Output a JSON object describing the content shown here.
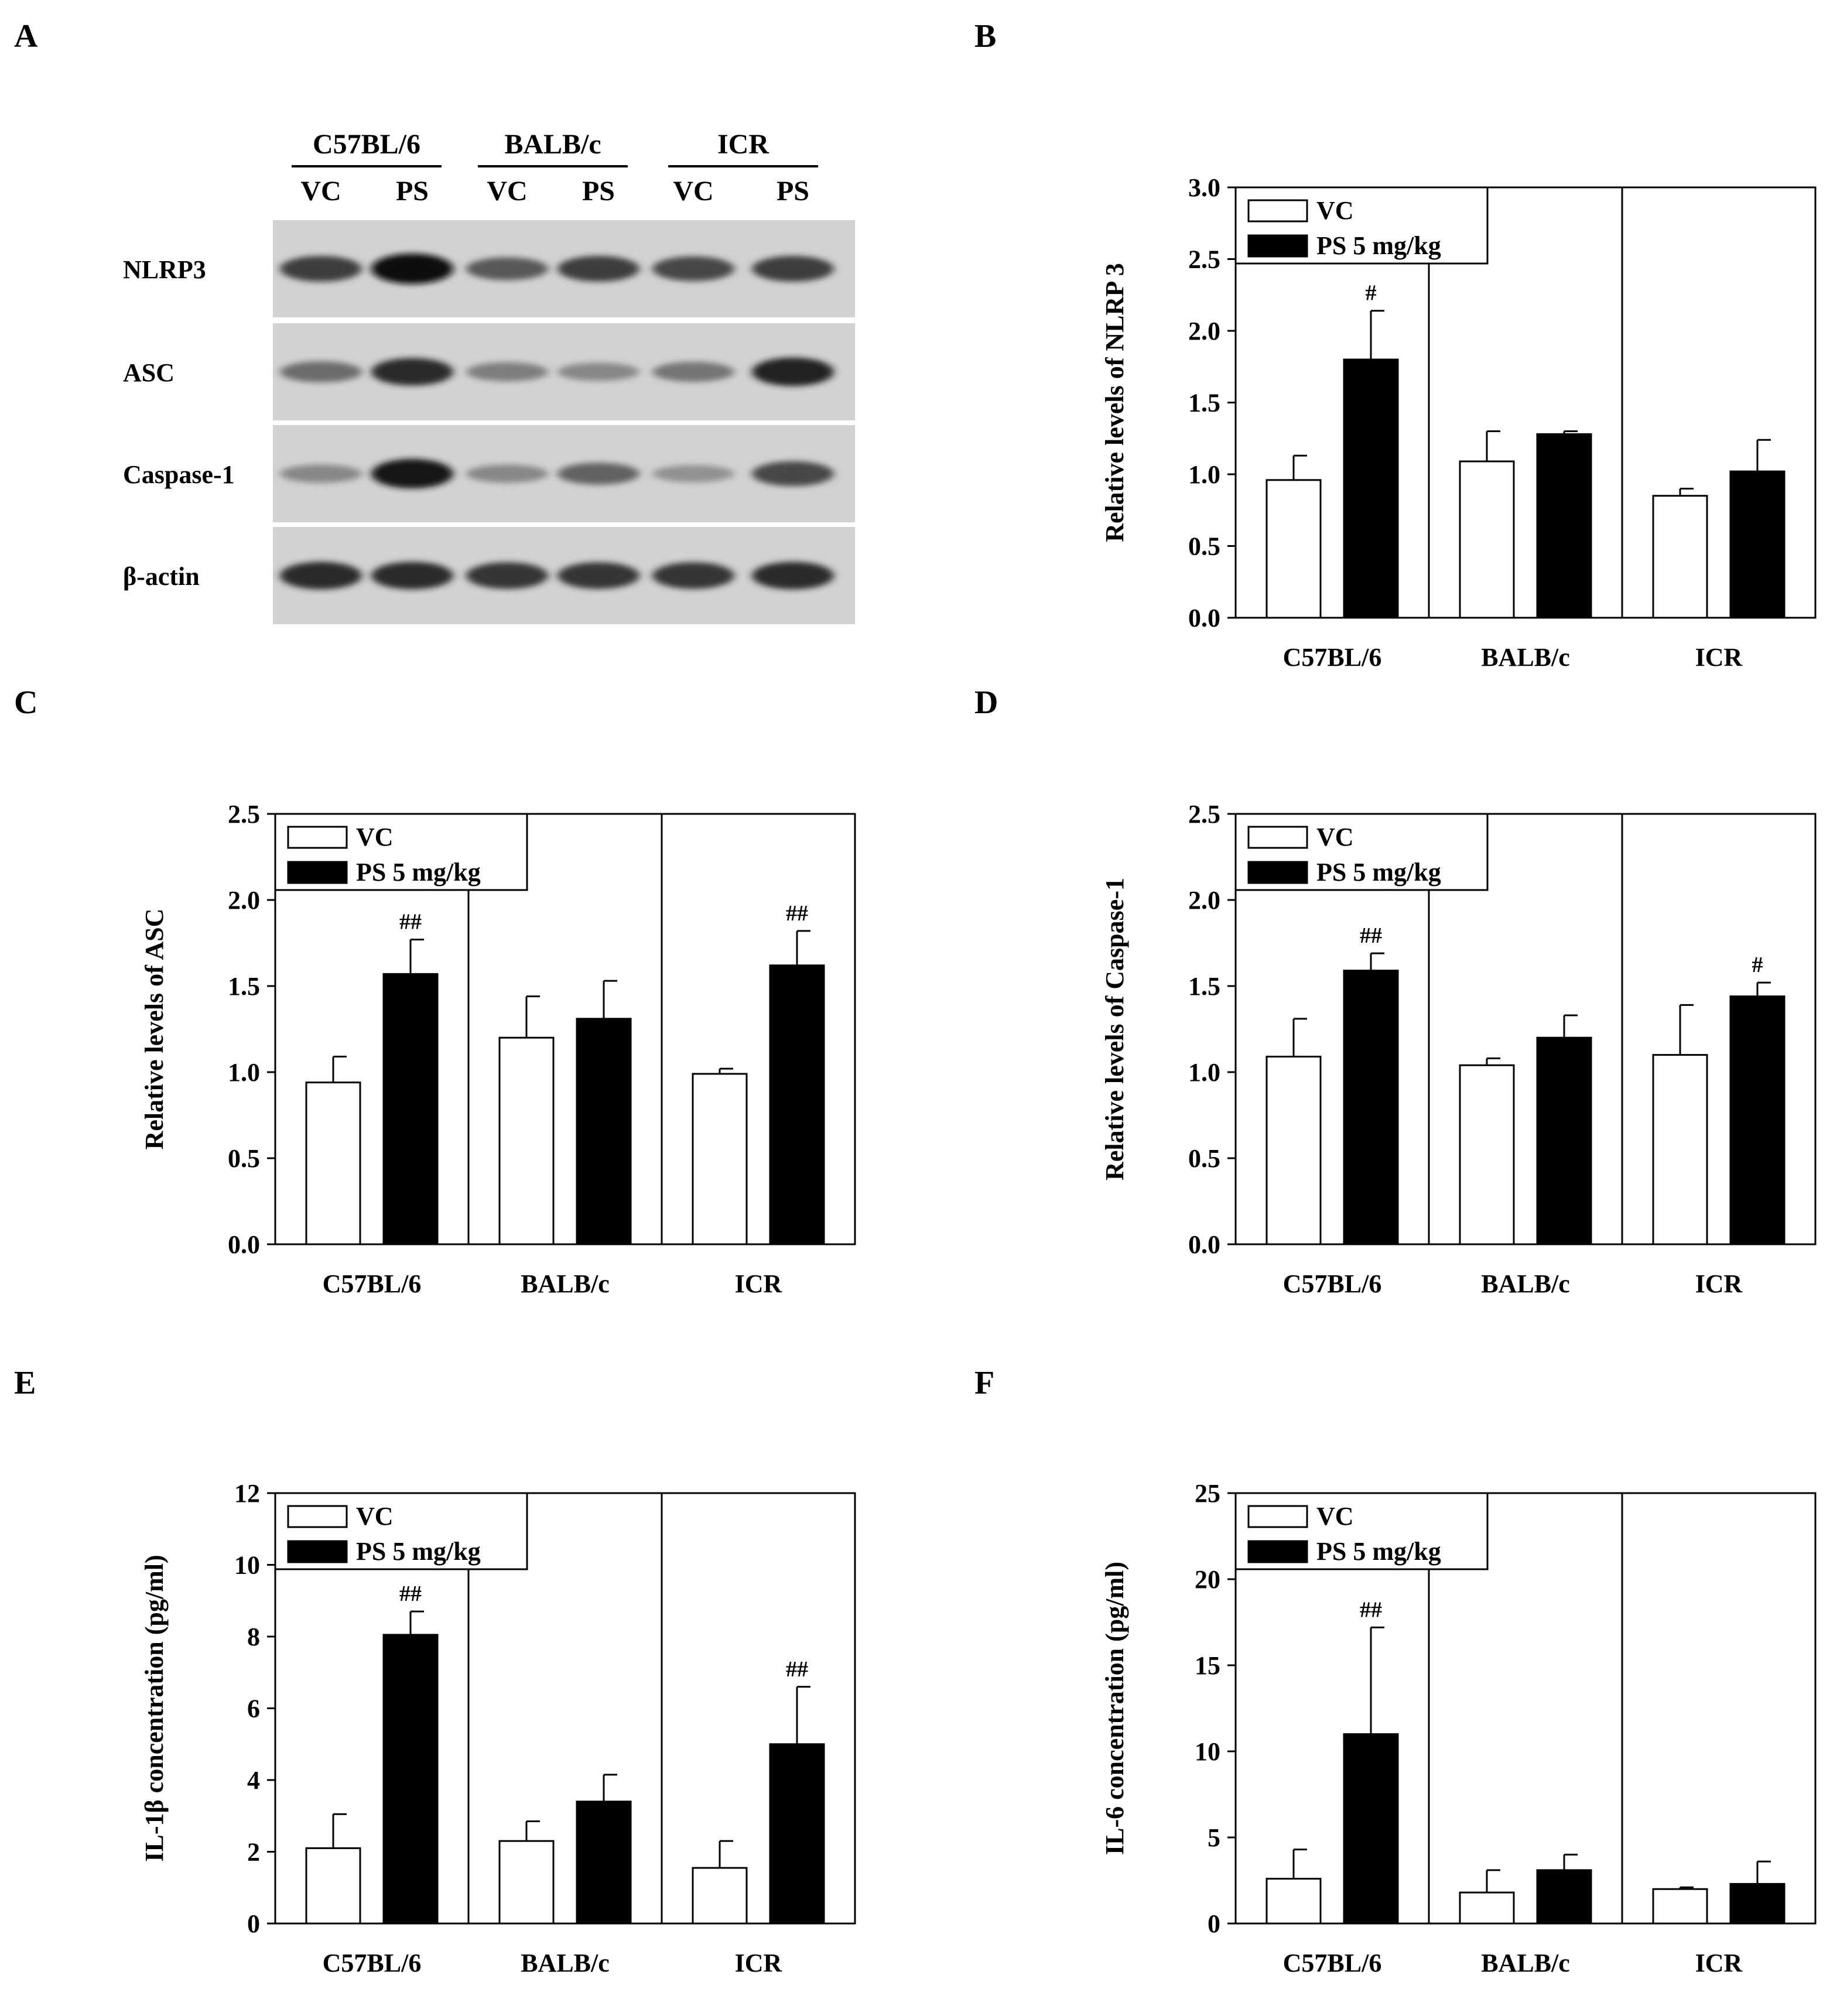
{
  "panel_letters": [
    "A",
    "B",
    "C",
    "D",
    "E",
    "F"
  ],
  "blot": {
    "strains": [
      "C57BL/6",
      "BALB/c",
      "ICR"
    ],
    "lanes": [
      "VC",
      "PS",
      "VC",
      "PS",
      "VC",
      "PS"
    ],
    "proteins": [
      {
        "name": "NLRP3",
        "intensity": [
          0.75,
          1.0,
          0.6,
          0.75,
          0.7,
          0.75
        ]
      },
      {
        "name": "ASC",
        "intensity": [
          0.5,
          0.85,
          0.4,
          0.35,
          0.45,
          0.9
        ]
      },
      {
        "name": "Caspase-1",
        "intensity": [
          0.35,
          0.95,
          0.35,
          0.55,
          0.3,
          0.7
        ]
      },
      {
        "name": "β-actin",
        "intensity": [
          0.85,
          0.85,
          0.8,
          0.8,
          0.8,
          0.85
        ]
      }
    ]
  },
  "colors": {
    "vc": "#ffffff",
    "ps": "#000000"
  },
  "chart_data": [
    {
      "panel": "B",
      "type": "bar",
      "categories": [
        "C57BL/6",
        "BALB/c",
        "ICR"
      ],
      "ylabel": "Relative levels of NLRP 3",
      "ylim": [
        0,
        3.0
      ],
      "yticks": [
        "0.0",
        "0.5",
        "1.0",
        "1.5",
        "2.0",
        "2.5",
        "3.0"
      ],
      "legend": [
        "VC",
        "PS 5 mg/kg"
      ],
      "legend_position": "top-left",
      "series": [
        {
          "name": "VC",
          "values": [
            0.96,
            1.09,
            0.85
          ],
          "errors": [
            0.17,
            0.21,
            0.05
          ],
          "marks": [
            "",
            "",
            ""
          ]
        },
        {
          "name": "PS 5 mg/kg",
          "values": [
            1.8,
            1.28,
            1.02
          ],
          "errors": [
            0.34,
            0.02,
            0.22
          ],
          "marks": [
            "#",
            "",
            ""
          ]
        }
      ]
    },
    {
      "panel": "C",
      "type": "bar",
      "categories": [
        "C57BL/6",
        "BALB/c",
        "ICR"
      ],
      "ylabel": "Relative levels of ASC",
      "ylim": [
        0,
        2.5
      ],
      "yticks": [
        "0.0",
        "0.5",
        "1.0",
        "1.5",
        "2.0",
        "2.5"
      ],
      "legend": [
        "VC",
        "PS 5 mg/kg"
      ],
      "legend_position": "top-left",
      "series": [
        {
          "name": "VC",
          "values": [
            0.94,
            1.2,
            0.99
          ],
          "errors": [
            0.15,
            0.24,
            0.03
          ],
          "marks": [
            "",
            "",
            ""
          ]
        },
        {
          "name": "PS 5 mg/kg",
          "values": [
            1.57,
            1.31,
            1.62
          ],
          "errors": [
            0.2,
            0.22,
            0.2
          ],
          "marks": [
            "##",
            "",
            "##"
          ]
        }
      ]
    },
    {
      "panel": "D",
      "type": "bar",
      "categories": [
        "C57BL/6",
        "BALB/c",
        "ICR"
      ],
      "ylabel": "Relative levels of Caspase-1",
      "ylim": [
        0,
        2.5
      ],
      "yticks": [
        "0.0",
        "0.5",
        "1.0",
        "1.5",
        "2.0",
        "2.5"
      ],
      "legend": [
        "VC",
        "PS 5 mg/kg"
      ],
      "legend_position": "top-left",
      "series": [
        {
          "name": "VC",
          "values": [
            1.09,
            1.04,
            1.1
          ],
          "errors": [
            0.22,
            0.04,
            0.29
          ],
          "marks": [
            "",
            "",
            ""
          ]
        },
        {
          "name": "PS 5 mg/kg",
          "values": [
            1.59,
            1.2,
            1.44
          ],
          "errors": [
            0.1,
            0.13,
            0.08
          ],
          "marks": [
            "##",
            "",
            "#"
          ]
        }
      ]
    },
    {
      "panel": "E",
      "type": "bar",
      "categories": [
        "C57BL/6",
        "BALB/c",
        "ICR"
      ],
      "ylabel": "IL-1β concentration (pg/ml)",
      "ylim": [
        0,
        12
      ],
      "yticks": [
        "0",
        "2",
        "4",
        "6",
        "8",
        "10",
        "12"
      ],
      "legend": [
        "VC",
        "PS 5 mg/kg"
      ],
      "legend_position": "top-left",
      "series": [
        {
          "name": "VC",
          "values": [
            2.1,
            2.3,
            1.55
          ],
          "errors": [
            0.95,
            0.55,
            0.75
          ],
          "marks": [
            "",
            "",
            ""
          ]
        },
        {
          "name": "PS 5 mg/kg",
          "values": [
            8.05,
            3.4,
            5.0
          ],
          "errors": [
            0.65,
            0.75,
            1.6
          ],
          "marks": [
            "##",
            "",
            "##"
          ]
        }
      ]
    },
    {
      "panel": "F",
      "type": "bar",
      "categories": [
        "C57BL/6",
        "BALB/c",
        "ICR"
      ],
      "ylabel": "IL-6 concentration (pg/ml)",
      "ylim": [
        0,
        25
      ],
      "yticks": [
        "0",
        "5",
        "10",
        "15",
        "20",
        "25"
      ],
      "legend": [
        "VC",
        "PS 5 mg/kg"
      ],
      "legend_position": "top-left",
      "series": [
        {
          "name": "VC",
          "values": [
            2.6,
            1.8,
            2.0
          ],
          "errors": [
            1.7,
            1.3,
            0.1
          ],
          "marks": [
            "",
            "",
            ""
          ]
        },
        {
          "name": "PS 5 mg/kg",
          "values": [
            11.0,
            3.1,
            2.3
          ],
          "errors": [
            6.2,
            0.9,
            1.3
          ],
          "marks": [
            "##",
            "",
            ""
          ]
        }
      ]
    }
  ]
}
